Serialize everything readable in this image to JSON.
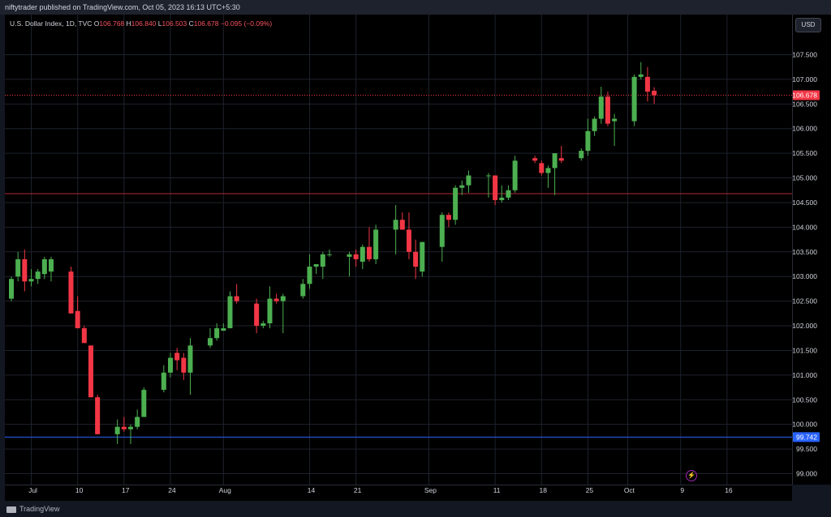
{
  "header": {
    "publisher_text": "niftytrader published on TradingView.com, Oct 05, 2023 16:13 UTC+5:30"
  },
  "legend": {
    "symbol": "U.S. Dollar Index, 1D, TVC",
    "o_label": "O",
    "o_value": "106.768",
    "h_label": "H",
    "h_value": "106.840",
    "l_label": "L",
    "l_value": "106.503",
    "c_label": "C",
    "c_value": "106.678",
    "change": "−0.095 (−0.09%)"
  },
  "currency_button": "USD",
  "footer": {
    "brand": "TradingView"
  },
  "colors": {
    "up": "#4caf50",
    "down": "#f23645",
    "background": "#000000",
    "grid": "#2a2e39",
    "support_line": "#2962ff",
    "resistance_line": "#b22833"
  },
  "chart_data": {
    "type": "candlestick",
    "title": "U.S. Dollar Index, 1D, TVC",
    "ylim": [
      98.85,
      108.1
    ],
    "y_ticks": [
      "107.500",
      "107.000",
      "106.500",
      "106.000",
      "105.500",
      "105.000",
      "104.500",
      "104.000",
      "103.500",
      "103.000",
      "102.500",
      "102.000",
      "101.500",
      "101.000",
      "100.500",
      "100.000",
      "99.500",
      "99.000"
    ],
    "x_ticks": [
      {
        "label": "Jul",
        "day": 0
      },
      {
        "label": "10",
        "day": 7
      },
      {
        "label": "17",
        "day": 14
      },
      {
        "label": "24",
        "day": 21
      },
      {
        "label": "Aug",
        "day": 29
      },
      {
        "label": "14",
        "day": 42
      },
      {
        "label": "21",
        "day": 49
      },
      {
        "label": "Sep",
        "day": 60
      },
      {
        "label": "11",
        "day": 70
      },
      {
        "label": "18",
        "day": 77
      },
      {
        "label": "25",
        "day": 84
      },
      {
        "label": "Oct",
        "day": 90
      },
      {
        "label": "9",
        "day": 98
      },
      {
        "label": "16",
        "day": 105
      }
    ],
    "horizontal_lines": [
      {
        "value": 104.68,
        "color": "#b22833",
        "label": ""
      },
      {
        "value": 99.742,
        "color": "#2962ff",
        "label": "99.742"
      }
    ],
    "last_price": {
      "value": 106.678,
      "label": "106.678"
    },
    "candles": [
      {
        "day": -3,
        "o": 102.55,
        "h": 103.0,
        "l": 102.5,
        "c": 102.95
      },
      {
        "day": -2,
        "o": 103.0,
        "h": 103.5,
        "l": 102.9,
        "c": 103.35
      },
      {
        "day": -1,
        "o": 103.35,
        "h": 103.55,
        "l": 102.7,
        "c": 102.9
      },
      {
        "day": 0,
        "o": 102.9,
        "h": 103.15,
        "l": 102.8,
        "c": 102.95
      },
      {
        "day": 1,
        "o": 102.95,
        "h": 103.15,
        "l": 102.85,
        "c": 103.1
      },
      {
        "day": 2,
        "o": 103.05,
        "h": 103.4,
        "l": 102.95,
        "c": 103.35
      },
      {
        "day": 3,
        "o": 103.1,
        "h": 103.4,
        "l": 102.9,
        "c": 103.35
      },
      {
        "day": 6,
        "o": 103.1,
        "h": 103.2,
        "l": 102.25,
        "c": 102.25
      },
      {
        "day": 7,
        "o": 102.3,
        "h": 102.6,
        "l": 101.95,
        "c": 101.95
      },
      {
        "day": 8,
        "o": 101.95,
        "h": 102.0,
        "l": 101.65,
        "c": 101.65
      },
      {
        "day": 9,
        "o": 101.6,
        "h": 101.6,
        "l": 100.55,
        "c": 100.55
      },
      {
        "day": 10,
        "o": 100.55,
        "h": 100.6,
        "l": 99.8,
        "c": 99.8
      },
      {
        "day": 13,
        "o": 99.8,
        "h": 100.1,
        "l": 99.6,
        "c": 99.95
      },
      {
        "day": 14,
        "o": 99.95,
        "h": 100.15,
        "l": 99.85,
        "c": 99.9
      },
      {
        "day": 15,
        "o": 99.9,
        "h": 100.0,
        "l": 99.6,
        "c": 99.95
      },
      {
        "day": 16,
        "o": 99.95,
        "h": 100.3,
        "l": 99.9,
        "c": 100.15
      },
      {
        "day": 17,
        "o": 100.15,
        "h": 100.75,
        "l": 100.15,
        "c": 100.7
      },
      {
        "day": 20,
        "o": 100.7,
        "h": 101.2,
        "l": 100.65,
        "c": 101.05
      },
      {
        "day": 21,
        "o": 101.05,
        "h": 101.45,
        "l": 100.95,
        "c": 101.35
      },
      {
        "day": 22,
        "o": 101.45,
        "h": 101.55,
        "l": 101.1,
        "c": 101.3
      },
      {
        "day": 23,
        "o": 101.35,
        "h": 101.45,
        "l": 100.9,
        "c": 101.05
      },
      {
        "day": 24,
        "o": 101.05,
        "h": 101.75,
        "l": 100.6,
        "c": 101.6
      },
      {
        "day": 27,
        "o": 101.6,
        "h": 101.95,
        "l": 101.55,
        "c": 101.75
      },
      {
        "day": 28,
        "o": 101.75,
        "h": 102.05,
        "l": 101.7,
        "c": 101.95
      },
      {
        "day": 29,
        "o": 101.9,
        "h": 102.05,
        "l": 101.9,
        "c": 101.95
      },
      {
        "day": 30,
        "o": 101.95,
        "h": 102.7,
        "l": 101.95,
        "c": 102.6
      },
      {
        "day": 31,
        "o": 102.6,
        "h": 102.85,
        "l": 102.45,
        "c": 102.5
      },
      {
        "day": 34,
        "o": 102.45,
        "h": 102.55,
        "l": 101.85,
        "c": 102.0
      },
      {
        "day": 35,
        "o": 102.0,
        "h": 102.1,
        "l": 101.95,
        "c": 102.05
      },
      {
        "day": 36,
        "o": 102.05,
        "h": 102.8,
        "l": 101.95,
        "c": 102.55
      },
      {
        "day": 37,
        "o": 102.55,
        "h": 102.65,
        "l": 102.45,
        "c": 102.5
      },
      {
        "day": 38,
        "o": 102.5,
        "h": 102.65,
        "l": 101.85,
        "c": 102.6
      },
      {
        "day": 41,
        "o": 102.6,
        "h": 102.95,
        "l": 102.55,
        "c": 102.85
      },
      {
        "day": 42,
        "o": 102.85,
        "h": 103.45,
        "l": 102.75,
        "c": 103.2
      },
      {
        "day": 43,
        "o": 103.2,
        "h": 103.25,
        "l": 103.05,
        "c": 103.25
      },
      {
        "day": 44,
        "o": 103.2,
        "h": 103.5,
        "l": 102.95,
        "c": 103.45
      },
      {
        "day": 45,
        "o": 103.45,
        "h": 103.55,
        "l": 103.4,
        "c": 103.45
      },
      {
        "day": 48,
        "o": 103.4,
        "h": 103.5,
        "l": 103.0,
        "c": 103.45
      },
      {
        "day": 49,
        "o": 103.45,
        "h": 103.55,
        "l": 103.2,
        "c": 103.35
      },
      {
        "day": 50,
        "o": 103.3,
        "h": 103.65,
        "l": 103.15,
        "c": 103.6
      },
      {
        "day": 51,
        "o": 103.6,
        "h": 104.0,
        "l": 103.3,
        "c": 103.35
      },
      {
        "day": 52,
        "o": 103.35,
        "h": 104.05,
        "l": 103.25,
        "c": 103.95
      },
      {
        "day": 55,
        "o": 103.95,
        "h": 104.45,
        "l": 103.45,
        "c": 104.15
      },
      {
        "day": 56,
        "o": 104.15,
        "h": 104.3,
        "l": 103.95,
        "c": 103.95
      },
      {
        "day": 57,
        "o": 103.95,
        "h": 104.3,
        "l": 103.35,
        "c": 103.5
      },
      {
        "day": 58,
        "o": 103.5,
        "h": 103.75,
        "l": 102.95,
        "c": 103.2
      },
      {
        "day": 59,
        "o": 103.1,
        "h": 103.7,
        "l": 103.0,
        "c": 103.7
      },
      {
        "day": 62,
        "o": 103.6,
        "h": 104.3,
        "l": 103.3,
        "c": 104.25
      },
      {
        "day": 63,
        "o": 104.25,
        "h": 104.3,
        "l": 104.0,
        "c": 104.15
      },
      {
        "day": 64,
        "o": 104.15,
        "h": 104.85,
        "l": 104.05,
        "c": 104.8
      },
      {
        "day": 65,
        "o": 104.8,
        "h": 104.95,
        "l": 104.65,
        "c": 104.85
      },
      {
        "day": 66,
        "o": 104.85,
        "h": 105.15,
        "l": 104.7,
        "c": 105.05
      },
      {
        "day": 69,
        "o": 105.05,
        "h": 105.1,
        "l": 104.6,
        "c": 105.05
      },
      {
        "day": 70,
        "o": 105.05,
        "h": 105.05,
        "l": 104.45,
        "c": 104.55
      },
      {
        "day": 71,
        "o": 104.55,
        "h": 104.85,
        "l": 104.5,
        "c": 104.6
      },
      {
        "day": 72,
        "o": 104.6,
        "h": 104.85,
        "l": 104.55,
        "c": 104.75
      },
      {
        "day": 73,
        "o": 104.75,
        "h": 105.45,
        "l": 104.7,
        "c": 105.35
      },
      {
        "day": 76,
        "o": 105.4,
        "h": 105.45,
        "l": 105.3,
        "c": 105.35
      },
      {
        "day": 77,
        "o": 105.3,
        "h": 105.35,
        "l": 105.05,
        "c": 105.1
      },
      {
        "day": 78,
        "o": 105.1,
        "h": 105.25,
        "l": 104.8,
        "c": 105.2
      },
      {
        "day": 79,
        "o": 105.2,
        "h": 105.5,
        "l": 104.65,
        "c": 105.5
      },
      {
        "day": 80,
        "o": 105.4,
        "h": 105.65,
        "l": 105.3,
        "c": 105.35
      },
      {
        "day": 83,
        "o": 105.4,
        "h": 105.6,
        "l": 105.35,
        "c": 105.55
      },
      {
        "day": 84,
        "o": 105.55,
        "h": 106.2,
        "l": 105.45,
        "c": 105.95
      },
      {
        "day": 85,
        "o": 105.95,
        "h": 106.25,
        "l": 105.85,
        "c": 106.2
      },
      {
        "day": 86,
        "o": 106.2,
        "h": 106.85,
        "l": 106.1,
        "c": 106.65
      },
      {
        "day": 87,
        "o": 106.65,
        "h": 106.75,
        "l": 106.05,
        "c": 106.1
      },
      {
        "day": 88,
        "o": 106.15,
        "h": 106.3,
        "l": 105.65,
        "c": 106.2
      },
      {
        "day": 91,
        "o": 106.15,
        "h": 107.1,
        "l": 106.05,
        "c": 107.05
      },
      {
        "day": 92,
        "o": 107.05,
        "h": 107.35,
        "l": 107.0,
        "c": 107.1
      },
      {
        "day": 93,
        "o": 107.05,
        "h": 107.25,
        "l": 106.55,
        "c": 106.75
      },
      {
        "day": 94,
        "o": 106.768,
        "h": 106.84,
        "l": 106.503,
        "c": 106.678
      }
    ]
  }
}
